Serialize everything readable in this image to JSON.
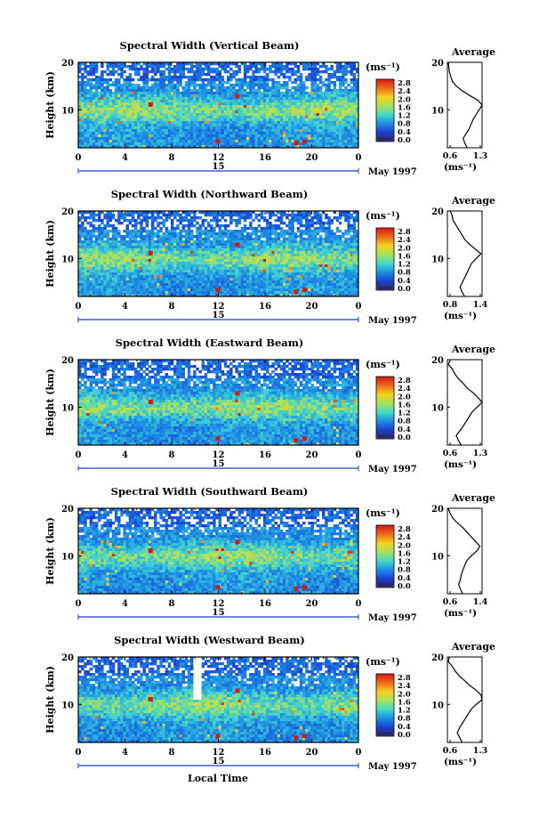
{
  "figure": {
    "x_axis_label": "Local Time",
    "y_axis_label": "Height (km)",
    "date_label": "May 1997",
    "day_label": "15",
    "colorbar_unit": "(ms⁻¹)",
    "colorbar_ticks": [
      "2.8",
      "2.4",
      "2.0",
      "1.6",
      "1.2",
      "0.8",
      "0.4",
      "0.0"
    ],
    "colorbar_colors": [
      "#d21a10",
      "#ef6a1a",
      "#f5d21e",
      "#a9e25a",
      "#3fdcc8",
      "#1c8ee6",
      "#1a3fcf",
      "#2a2a6a"
    ],
    "x_ticks": [
      "0",
      "4",
      "8",
      "12",
      "16",
      "20",
      "0"
    ],
    "y_ticks": [
      "20",
      "10"
    ],
    "avg_title": "Average",
    "avg_unit": "(ms⁻¹)"
  },
  "chart_data": [
    {
      "type": "heatmap",
      "title": "Spectral Width (Vertical Beam)",
      "x_range_hours": [
        0,
        24
      ],
      "y_range_km": [
        2,
        20
      ],
      "color_range": [
        0.0,
        3.0
      ],
      "profile": {
        "title": "Average",
        "x_ticks": [
          "0.6",
          "1.3"
        ],
        "xlim": [
          0.6,
          1.3
        ],
        "heights_km": [
          20,
          18,
          16,
          15,
          14,
          13,
          12,
          11,
          10,
          9,
          8,
          7,
          6,
          5,
          4,
          3,
          2
        ],
        "values": [
          0.62,
          0.64,
          0.7,
          0.78,
          0.9,
          1.05,
          1.22,
          1.3,
          1.24,
          1.18,
          1.12,
          1.08,
          1.04,
          0.98,
          0.92,
          0.95,
          1.0
        ]
      }
    },
    {
      "type": "heatmap",
      "title": "Spectral Width (Northward Beam)",
      "x_range_hours": [
        0,
        24
      ],
      "y_range_km": [
        2,
        20
      ],
      "color_range": [
        0.0,
        3.0
      ],
      "profile": {
        "title": "Average",
        "x_ticks": [
          "0.8",
          "1.4"
        ],
        "xlim": [
          0.8,
          1.4
        ],
        "heights_km": [
          20,
          19,
          18,
          17,
          16,
          15,
          14,
          13,
          12,
          11,
          10,
          9,
          8,
          7,
          6,
          5,
          4,
          3,
          2
        ],
        "values": [
          0.85,
          0.88,
          0.9,
          0.95,
          1.0,
          1.05,
          1.1,
          1.18,
          1.28,
          1.38,
          1.3,
          1.22,
          1.18,
          1.14,
          1.1,
          1.06,
          1.02,
          1.05,
          1.1
        ]
      }
    },
    {
      "type": "heatmap",
      "title": "Spectral Width (Eastward Beam)",
      "x_range_hours": [
        0,
        24
      ],
      "y_range_km": [
        2,
        20
      ],
      "color_range": [
        0.0,
        3.0
      ],
      "profile": {
        "title": "Average",
        "x_ticks": [
          "0.6",
          "1.3"
        ],
        "xlim": [
          0.6,
          1.3
        ],
        "heights_km": [
          20,
          19,
          18,
          17,
          16,
          15,
          14,
          13,
          12,
          11,
          10,
          9,
          8,
          7,
          6,
          5,
          4,
          3,
          2
        ],
        "values": [
          0.66,
          0.62,
          0.7,
          0.75,
          0.82,
          0.92,
          1.0,
          1.12,
          1.22,
          1.3,
          1.2,
          1.1,
          1.04,
          0.98,
          0.92,
          0.85,
          0.78,
          0.82,
          0.88
        ]
      }
    },
    {
      "type": "heatmap",
      "title": "Spectral Width (Southward Beam)",
      "x_range_hours": [
        0,
        24
      ],
      "y_range_km": [
        2,
        20
      ],
      "color_range": [
        0.0,
        3.0
      ],
      "profile": {
        "title": "Average",
        "x_ticks": [
          "0.6",
          "1.4"
        ],
        "xlim": [
          0.6,
          1.4
        ],
        "heights_km": [
          20,
          19,
          18,
          17,
          16,
          15,
          14,
          13,
          12,
          11,
          10,
          9,
          8,
          7,
          6,
          5,
          4,
          3,
          2
        ],
        "values": [
          0.62,
          0.66,
          0.72,
          0.82,
          0.95,
          1.05,
          1.15,
          1.25,
          1.35,
          1.28,
          1.15,
          1.05,
          1.0,
          0.96,
          0.92,
          0.9,
          0.86,
          0.9,
          0.95
        ]
      }
    },
    {
      "type": "heatmap",
      "title": "Spectral Width (Westward Beam)",
      "x_range_hours": [
        0,
        24
      ],
      "y_range_km": [
        2,
        20
      ],
      "color_range": [
        0.0,
        3.0
      ],
      "profile": {
        "title": "Average",
        "x_ticks": [
          "0.6",
          "1.3"
        ],
        "xlim": [
          0.6,
          1.3
        ],
        "heights_km": [
          20,
          19,
          18,
          17,
          16,
          15,
          14,
          13,
          12,
          11,
          10,
          9,
          8,
          7,
          6,
          5,
          4,
          3,
          2
        ],
        "values": [
          0.64,
          0.62,
          0.7,
          0.76,
          0.84,
          0.95,
          1.05,
          1.18,
          1.28,
          1.3,
          1.18,
          1.08,
          1.02,
          0.96,
          0.9,
          0.84,
          0.8,
          0.85,
          0.9
        ]
      }
    }
  ]
}
